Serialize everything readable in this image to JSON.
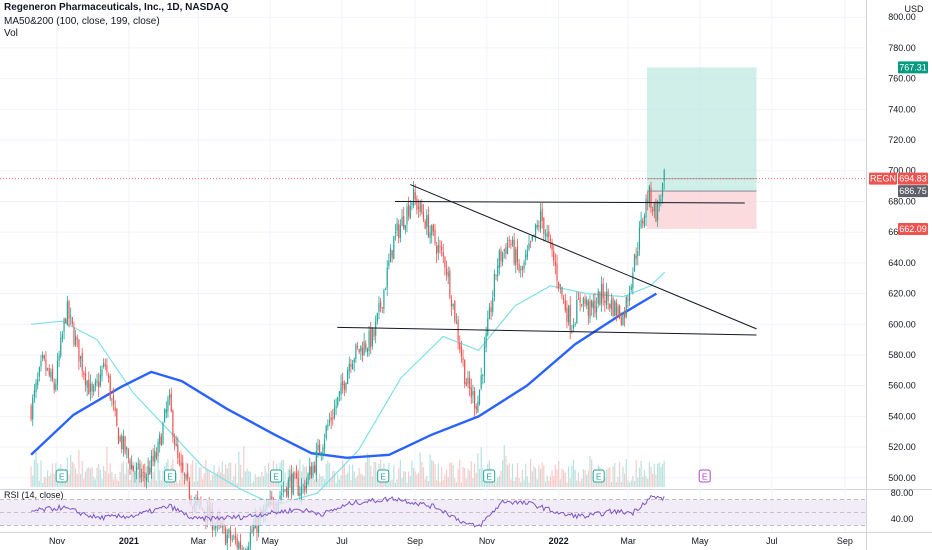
{
  "header": {
    "title": "Regeneron Pharmaceuticals, Inc., 1D, NASDAQ",
    "indicator_ma": "MA50&200 (100, close, 199, close)",
    "indicator_vol": "Vol",
    "indicator_rsi": "RSI (14, close)",
    "currency": "USD"
  },
  "colors": {
    "up": "#26a69a",
    "down": "#ef5350",
    "ma_long": "#2962ff",
    "ma_short": "#7fdfe8",
    "target_zone": "#b8e6dd",
    "stop_zone": "#f9cfd3",
    "rsi_line": "#7e57c2",
    "rsi_band": "#ede7f6"
  },
  "price_tags": {
    "ticker": "REGN",
    "target": "767.31",
    "last": "694.83",
    "entry": "686.75",
    "stop": "662.09"
  },
  "earnings_marker": "E",
  "chart_data": {
    "type": "candlestick",
    "title": "Regeneron Pharmaceuticals, Inc., 1D, NASDAQ",
    "x_tick_labels": [
      "Nov",
      "2021",
      "Mar",
      "May",
      "Jul",
      "Sep",
      "Nov",
      "2022",
      "Mar",
      "May",
      "Jul",
      "Sep"
    ],
    "y_tick_labels": [
      "800.00",
      "780.00",
      "760.00",
      "740.00",
      "720.00",
      "700.00",
      "680.00",
      "660.00",
      "640.00",
      "620.00",
      "600.00",
      "580.00",
      "560.00",
      "540.00",
      "520.00",
      "500.00"
    ],
    "ylim": [
      494,
      806
    ],
    "rsi_tick_labels": [
      "80.00",
      "40.00"
    ],
    "rsi_ylim": [
      20,
      85
    ],
    "price_path": [
      {
        "date": "2020-10-10",
        "close": 545
      },
      {
        "date": "2020-10-20",
        "close": 575
      },
      {
        "date": "2020-10-30",
        "close": 558
      },
      {
        "date": "2020-11-09",
        "close": 610
      },
      {
        "date": "2020-11-20",
        "close": 580
      },
      {
        "date": "2020-12-01",
        "close": 552
      },
      {
        "date": "2020-12-12",
        "close": 574
      },
      {
        "date": "2020-12-22",
        "close": 530
      },
      {
        "date": "2021-01-05",
        "close": 505
      },
      {
        "date": "2021-01-14",
        "close": 500
      },
      {
        "date": "2021-01-25",
        "close": 515
      },
      {
        "date": "2021-02-04",
        "close": 551
      },
      {
        "date": "2021-02-12",
        "close": 508
      },
      {
        "date": "2021-02-25",
        "close": 484
      },
      {
        "date": "2021-03-10",
        "close": 475
      },
      {
        "date": "2021-03-25",
        "close": 462
      },
      {
        "date": "2021-04-08",
        "close": 455
      },
      {
        "date": "2021-04-20",
        "close": 470
      },
      {
        "date": "2021-05-05",
        "close": 485
      },
      {
        "date": "2021-05-18",
        "close": 498
      },
      {
        "date": "2021-05-28",
        "close": 492
      },
      {
        "date": "2021-06-07",
        "close": 508
      },
      {
        "date": "2021-06-18",
        "close": 532
      },
      {
        "date": "2021-06-30",
        "close": 555
      },
      {
        "date": "2021-07-08",
        "close": 578
      },
      {
        "date": "2021-07-18",
        "close": 585
      },
      {
        "date": "2021-07-28",
        "close": 592
      },
      {
        "date": "2021-08-05",
        "close": 620
      },
      {
        "date": "2021-08-14",
        "close": 655
      },
      {
        "date": "2021-08-23",
        "close": 670
      },
      {
        "date": "2021-08-30",
        "close": 683
      },
      {
        "date": "2021-09-07",
        "close": 672
      },
      {
        "date": "2021-09-17",
        "close": 655
      },
      {
        "date": "2021-09-27",
        "close": 640
      },
      {
        "date": "2021-10-05",
        "close": 605
      },
      {
        "date": "2021-10-15",
        "close": 560
      },
      {
        "date": "2021-10-24",
        "close": 548
      },
      {
        "date": "2021-11-02",
        "close": 598
      },
      {
        "date": "2021-11-10",
        "close": 640
      },
      {
        "date": "2021-11-20",
        "close": 655
      },
      {
        "date": "2021-11-30",
        "close": 632
      },
      {
        "date": "2021-12-09",
        "close": 652
      },
      {
        "date": "2021-12-17",
        "close": 670
      },
      {
        "date": "2021-12-27",
        "close": 644
      },
      {
        "date": "2022-01-05",
        "close": 615
      },
      {
        "date": "2022-01-12",
        "close": 600
      },
      {
        "date": "2022-01-20",
        "close": 618
      },
      {
        "date": "2022-01-28",
        "close": 608
      },
      {
        "date": "2022-02-07",
        "close": 620
      },
      {
        "date": "2022-02-16",
        "close": 612
      },
      {
        "date": "2022-02-25",
        "close": 605
      },
      {
        "date": "2022-03-04",
        "close": 632
      },
      {
        "date": "2022-03-11",
        "close": 660
      },
      {
        "date": "2022-03-18",
        "close": 685
      },
      {
        "date": "2022-03-25",
        "close": 672
      },
      {
        "date": "2022-04-01",
        "close": 695
      }
    ],
    "ma_long": [
      {
        "date": "2020-10-10",
        "value": 515
      },
      {
        "date": "2020-11-15",
        "value": 541
      },
      {
        "date": "2020-12-25",
        "value": 559
      },
      {
        "date": "2021-01-20",
        "value": 569
      },
      {
        "date": "2021-02-15",
        "value": 563
      },
      {
        "date": "2021-03-25",
        "value": 545
      },
      {
        "date": "2021-05-05",
        "value": 528
      },
      {
        "date": "2021-06-05",
        "value": 516
      },
      {
        "date": "2021-07-05",
        "value": 513
      },
      {
        "date": "2021-08-10",
        "value": 515
      },
      {
        "date": "2021-09-15",
        "value": 528
      },
      {
        "date": "2021-10-25",
        "value": 540
      },
      {
        "date": "2021-12-05",
        "value": 560
      },
      {
        "date": "2022-01-15",
        "value": 587
      },
      {
        "date": "2022-02-20",
        "value": 605
      },
      {
        "date": "2022-03-25",
        "value": 620
      }
    ],
    "ma_short": [
      {
        "date": "2020-10-10",
        "value": 600
      },
      {
        "date": "2020-11-05",
        "value": 602
      },
      {
        "date": "2020-12-05",
        "value": 590
      },
      {
        "date": "2021-01-05",
        "value": 555
      },
      {
        "date": "2021-02-05",
        "value": 530
      },
      {
        "date": "2021-03-05",
        "value": 507
      },
      {
        "date": "2021-04-05",
        "value": 493
      },
      {
        "date": "2021-05-05",
        "value": 482
      },
      {
        "date": "2021-06-10",
        "value": 490
      },
      {
        "date": "2021-07-15",
        "value": 518
      },
      {
        "date": "2021-08-20",
        "value": 565
      },
      {
        "date": "2021-09-25",
        "value": 592
      },
      {
        "date": "2021-10-25",
        "value": 583
      },
      {
        "date": "2021-11-25",
        "value": 612
      },
      {
        "date": "2021-12-25",
        "value": 625
      },
      {
        "date": "2022-01-25",
        "value": 620
      },
      {
        "date": "2022-02-25",
        "value": 618
      },
      {
        "date": "2022-03-20",
        "value": 625
      },
      {
        "date": "2022-04-01",
        "value": 634
      }
    ],
    "trendlines": [
      {
        "name": "upper",
        "from": {
          "date": "2021-08-28",
          "value": 691
        },
        "to": {
          "date": "2022-06-18",
          "value": 597
        }
      },
      {
        "name": "lower",
        "from": {
          "date": "2021-06-27",
          "value": 598
        },
        "to": {
          "date": "2022-06-18",
          "value": 593
        }
      },
      {
        "name": "horizontal",
        "from": {
          "date": "2021-08-15",
          "value": 680
        },
        "to": {
          "date": "2022-06-08",
          "value": 679
        }
      }
    ],
    "position": {
      "start": "2022-03-17",
      "end": "2022-06-18",
      "target": 767.31,
      "entry": 686.75,
      "stop": 662.09
    },
    "last_price": 694.83,
    "earnings_dates": [
      "2020-11-05",
      "2021-02-05",
      "2021-05-06",
      "2021-08-05",
      "2021-11-03",
      "2022-02-04"
    ],
    "upcoming_earnings_date": "2022-05-05",
    "rsi_path": [
      {
        "date": "2020-10-10",
        "value": 52
      },
      {
        "date": "2020-11-05",
        "value": 58
      },
      {
        "date": "2020-12-05",
        "value": 42
      },
      {
        "date": "2021-01-05",
        "value": 45
      },
      {
        "date": "2021-02-05",
        "value": 60
      },
      {
        "date": "2021-02-25",
        "value": 40
      },
      {
        "date": "2021-04-05",
        "value": 43
      },
      {
        "date": "2021-05-25",
        "value": 55
      },
      {
        "date": "2021-06-15",
        "value": 48
      },
      {
        "date": "2021-07-10",
        "value": 65
      },
      {
        "date": "2021-08-15",
        "value": 72
      },
      {
        "date": "2021-09-20",
        "value": 58
      },
      {
        "date": "2021-10-15",
        "value": 32
      },
      {
        "date": "2021-10-25",
        "value": 28
      },
      {
        "date": "2021-11-15",
        "value": 68
      },
      {
        "date": "2021-12-10",
        "value": 63
      },
      {
        "date": "2022-01-05",
        "value": 47
      },
      {
        "date": "2022-01-25",
        "value": 44
      },
      {
        "date": "2022-02-15",
        "value": 52
      },
      {
        "date": "2022-03-05",
        "value": 50
      },
      {
        "date": "2022-03-20",
        "value": 74
      },
      {
        "date": "2022-04-01",
        "value": 72
      }
    ]
  }
}
